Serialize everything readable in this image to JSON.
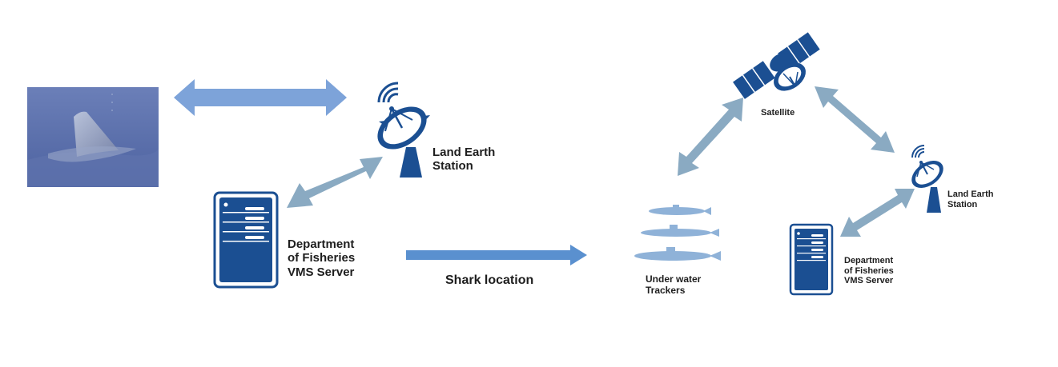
{
  "colors": {
    "arrow_light": "#7da3d9",
    "arrow_steel": "#8aaac2",
    "arrow_flow": "#5a90cf",
    "icon_navy": "#1b4f92",
    "submarine": "#8fb2d8",
    "photo_water": "#5a6fa8"
  },
  "left": {
    "photo": {
      "subject": "shark-fin-photo"
    },
    "earth_station": {
      "line1": "Land Earth",
      "line2": "Station"
    },
    "server": {
      "line1": "Department",
      "line2": "of Fisheries",
      "line3": "VMS Server"
    }
  },
  "flow": {
    "label": "Shark location"
  },
  "right": {
    "satellite": {
      "label": "Satellite"
    },
    "trackers": {
      "line1": "Under water",
      "line2": "Trackers"
    },
    "earth_station": {
      "line1": "Land Earth",
      "line2": "Station"
    },
    "server": {
      "line1": "Department",
      "line2": "of Fisheries",
      "line3": "VMS Server"
    }
  }
}
